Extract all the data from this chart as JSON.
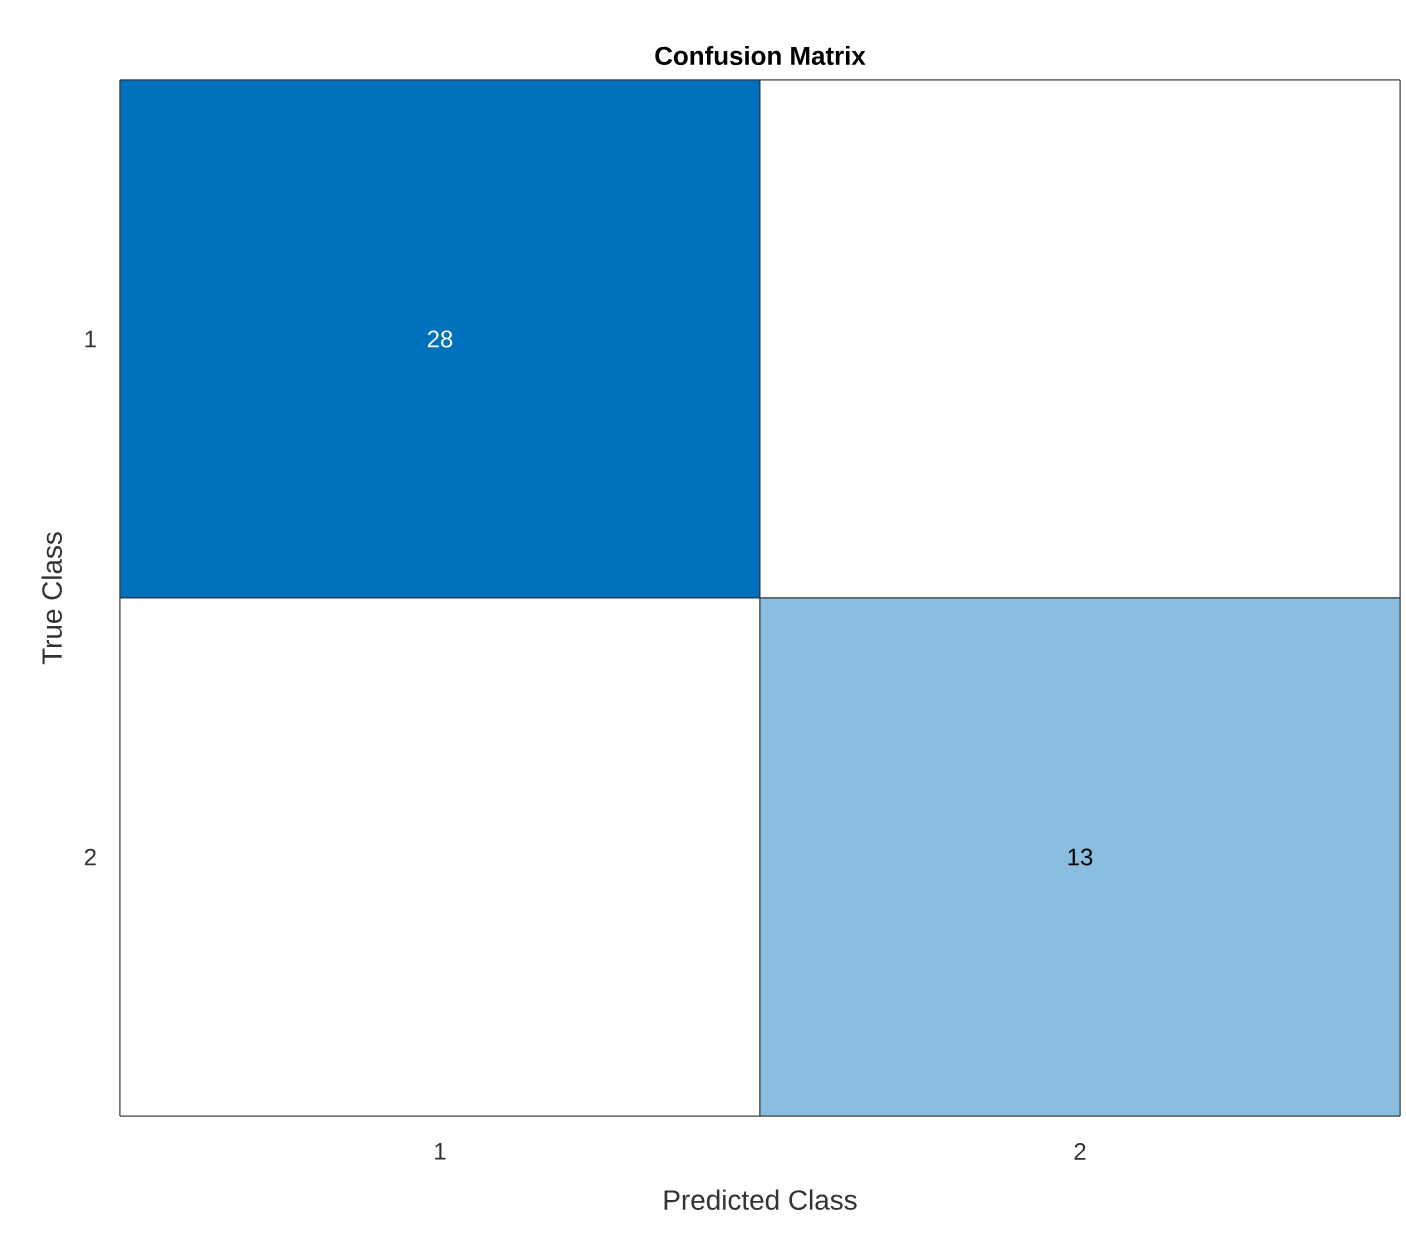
{
  "chart_data": {
    "type": "heatmap",
    "title": "Confusion Matrix",
    "xlabel": "Predicted Class",
    "ylabel": "True Class",
    "categories": [
      "1",
      "2"
    ],
    "y_categories": [
      "1",
      "2"
    ],
    "cells": [
      [
        28,
        null
      ],
      [
        null,
        13
      ]
    ],
    "cell_labels": [
      [
        "28",
        null
      ],
      [
        null,
        "13"
      ]
    ],
    "color": "#0072bd"
  }
}
